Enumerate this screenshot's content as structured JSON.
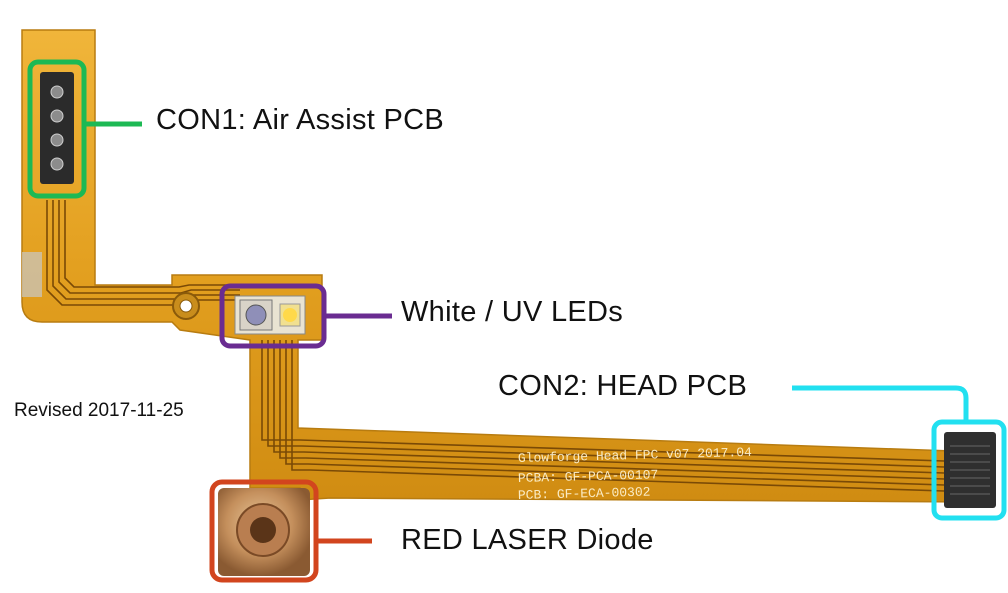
{
  "labels": {
    "con1": "CON1: Air Assist PCB",
    "leds": "White / UV LEDs",
    "con2": "CON2: HEAD PCB",
    "laser": "RED LASER Diode"
  },
  "revision_note": "Revised 2017-11-25",
  "pcb_silkscreen": {
    "line1": "Glowforge Head FPC v07 2017.04",
    "line2": "PCBA: GF-PCA-00107",
    "line3": "PCB: GF-ECA-00302"
  },
  "colors": {
    "con1_highlight": "#1db954",
    "leds_highlight": "#6a2c91",
    "con2_highlight": "#22e0f0",
    "laser_highlight": "#d2451e",
    "flex_pcb": "#e8a524",
    "trace": "#7a4a06"
  }
}
